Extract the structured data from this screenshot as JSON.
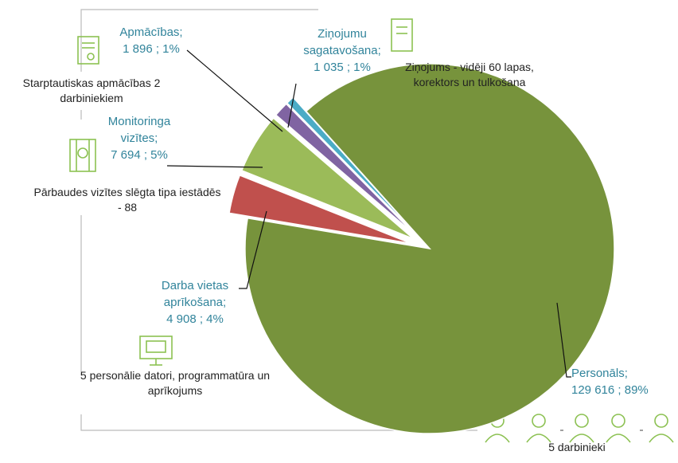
{
  "chart_data": {
    "type": "pie",
    "categories": [
      "Personāls;",
      "Darba vietas aprīkošana;",
      "Monitoringa vizītes;",
      "Apmācības;",
      "Ziņojumu sagatavošana;"
    ],
    "values": [
      129616,
      4908,
      7694,
      1896,
      1035
    ],
    "value_labels": [
      "129 616 ; 89%",
      "4 908 ; 4%",
      "7 694 ; 5%",
      "1 896 ; 1%",
      "1 035 ; 1%"
    ],
    "colors": [
      "#77933c",
      "#c0504d",
      "#9bbb59",
      "#8064a2",
      "#4bacc6"
    ],
    "annotations": [
      "5 darbinieki",
      "5 personālie datori, programmatūra un aprīkojums",
      "Pārbaudes vizītes slēgta tipa iestādēs - 88",
      "Starptautiskas apmācības 2 darbiniekiem",
      "Ziņojums - vidēji 60 lapas, korektors un tulkošana"
    ]
  }
}
